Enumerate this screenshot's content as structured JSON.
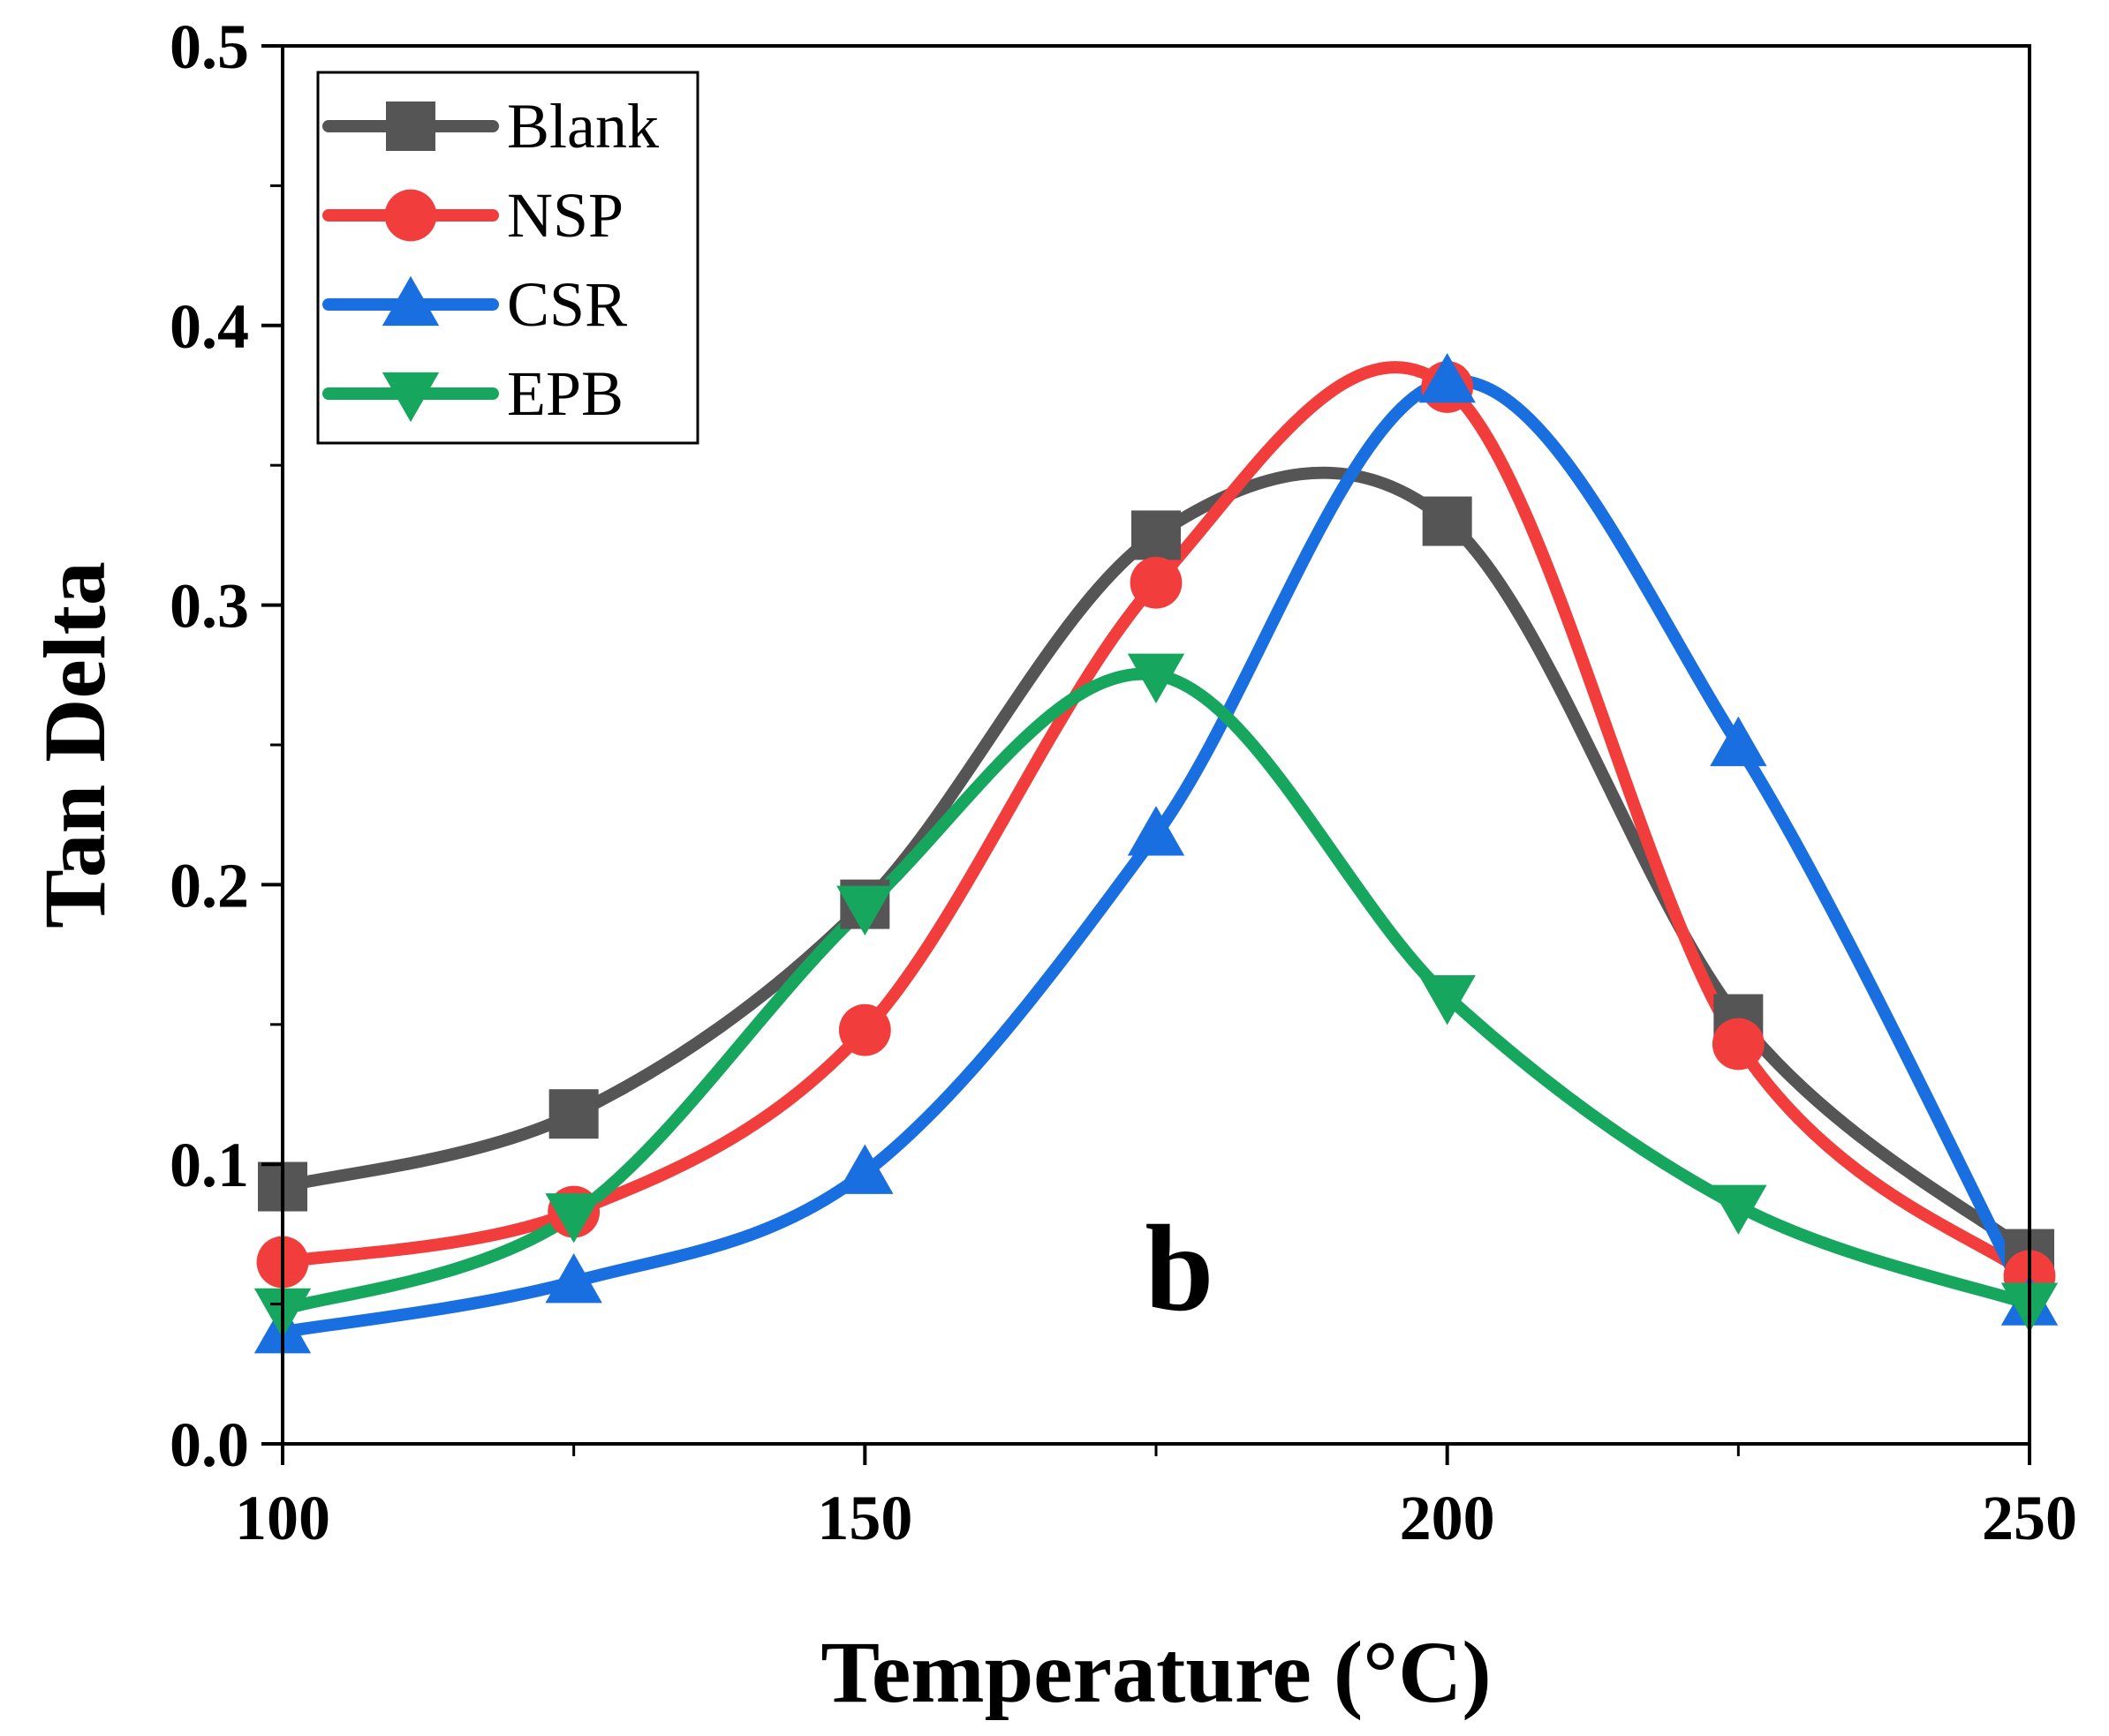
{
  "chart_data": {
    "type": "line",
    "xlabel": "Temperature (°C)",
    "ylabel": "Tan Delta",
    "panel_label": "b",
    "xlim": [
      100,
      250
    ],
    "ylim": [
      0.0,
      0.5
    ],
    "x_ticks": [
      100,
      150,
      200,
      250
    ],
    "x_tick_labels": [
      "100",
      "150",
      "200",
      "250"
    ],
    "y_ticks": [
      0.0,
      0.1,
      0.2,
      0.3,
      0.4,
      0.5
    ],
    "y_tick_labels": [
      "0.0",
      "0.1",
      "0.2",
      "0.3",
      "0.4",
      "0.5"
    ],
    "x_minor_ticks": [
      125,
      175,
      225
    ],
    "y_minor_ticks": [
      0.05,
      0.15,
      0.25,
      0.35,
      0.45
    ],
    "grid": false,
    "legend_position": "top-left",
    "x": [
      100,
      125,
      150,
      175,
      200,
      225,
      250
    ],
    "series": [
      {
        "name": "Blank",
        "color": "#555555",
        "marker": "square",
        "values": [
          0.092,
          0.118,
          0.193,
          0.325,
          0.33,
          0.152,
          0.068
        ]
      },
      {
        "name": "NSP",
        "color": "#f23d3d",
        "marker": "circle",
        "values": [
          0.065,
          0.083,
          0.148,
          0.308,
          0.378,
          0.143,
          0.06
        ]
      },
      {
        "name": "CSR",
        "color": "#1a6fe0",
        "marker": "triangle-up",
        "values": [
          0.04,
          0.058,
          0.097,
          0.218,
          0.38,
          0.25,
          0.05
        ]
      },
      {
        "name": "EPB",
        "color": "#17a65e",
        "marker": "triangle-down",
        "values": [
          0.048,
          0.082,
          0.192,
          0.275,
          0.16,
          0.085,
          0.05
        ]
      }
    ]
  }
}
